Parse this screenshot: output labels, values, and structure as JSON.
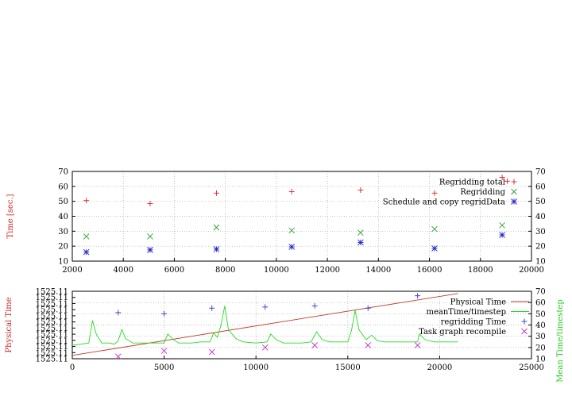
{
  "chart_data": [
    {
      "type": "scatter",
      "ylabel": "Time [sec.]",
      "xlim": [
        2000,
        20000
      ],
      "ylim": [
        10,
        70
      ],
      "xticks": [
        2000,
        4000,
        6000,
        8000,
        10000,
        12000,
        14000,
        16000,
        18000,
        20000
      ],
      "yticks": [
        10,
        20,
        30,
        40,
        50,
        60,
        70
      ],
      "y2ticks": [
        10,
        20,
        30,
        40,
        50,
        60,
        70
      ],
      "grid": true,
      "legend_position": "top-right",
      "series": [
        {
          "name": "Regridding total",
          "marker": "plus",
          "color": "#d62728",
          "points": [
            [
              2550,
              50.5
            ],
            [
              5050,
              48.5
            ],
            [
              7650,
              55.5
            ],
            [
              10600,
              56.5
            ],
            [
              13300,
              57.5
            ],
            [
              16200,
              55.5
            ],
            [
              18850,
              66
            ],
            [
              19050,
              63.5
            ]
          ]
        },
        {
          "name": "Regridding",
          "marker": "cross",
          "color": "#2ca02c",
          "points": [
            [
              2550,
              26.5
            ],
            [
              5050,
              26.5
            ],
            [
              7650,
              32.5
            ],
            [
              10600,
              30.5
            ],
            [
              13300,
              29
            ],
            [
              16200,
              31.5
            ],
            [
              18850,
              34
            ]
          ]
        },
        {
          "name": "Schedule and copy regridData",
          "marker": "star",
          "color": "#1f1fcf",
          "points": [
            [
              2550,
              16
            ],
            [
              5050,
              17.5
            ],
            [
              7650,
              18
            ],
            [
              10600,
              19.5
            ],
            [
              13300,
              22.5
            ],
            [
              16200,
              18.5
            ],
            [
              18850,
              27.5
            ]
          ]
        }
      ]
    },
    {
      "type": "line",
      "ylabel": "Physical Time",
      "y2label": "Mean Time/timestep",
      "xlim": [
        0,
        25000
      ],
      "y2lim": [
        10,
        70
      ],
      "xticks": [
        0,
        5000,
        10000,
        15000,
        20000,
        25000
      ],
      "yticks": [
        "1525.11",
        "1525.11",
        "1525.11",
        "1525.11",
        "1525.11",
        "1525.11",
        "1525.11",
        "1525.11",
        "1525.11",
        "1525.11",
        "1525.11",
        "1525.11"
      ],
      "y2ticks": [
        10,
        20,
        30,
        40,
        50,
        60,
        70
      ],
      "grid": true,
      "legend_position": "top-right",
      "series": [
        {
          "name": "Physical Time",
          "color": "#c0392b",
          "axis": "y2",
          "points": [
            [
              0,
              13
            ],
            [
              21000,
              68
            ]
          ]
        },
        {
          "name": "meanTime/timestep",
          "color": "#22dd22",
          "axis": "y2",
          "points": [
            [
              0,
              22
            ],
            [
              500,
              23
            ],
            [
              900,
              24
            ],
            [
              1100,
              44
            ],
            [
              1300,
              32
            ],
            [
              1600,
              24
            ],
            [
              2000,
              24
            ],
            [
              2300,
              23
            ],
            [
              2500,
              26
            ],
            [
              2700,
              36
            ],
            [
              2900,
              28
            ],
            [
              3300,
              24
            ],
            [
              4000,
              24
            ],
            [
              4500,
              24
            ],
            [
              5000,
              24
            ],
            [
              5200,
              32
            ],
            [
              5500,
              27
            ],
            [
              5800,
              24
            ],
            [
              6500,
              24
            ],
            [
              7000,
              25
            ],
            [
              7500,
              25
            ],
            [
              7700,
              33
            ],
            [
              7900,
              29
            ],
            [
              8100,
              40
            ],
            [
              8300,
              57
            ],
            [
              8500,
              36
            ],
            [
              8900,
              28
            ],
            [
              9300,
              25
            ],
            [
              10000,
              24
            ],
            [
              10600,
              25
            ],
            [
              10800,
              32
            ],
            [
              11100,
              27
            ],
            [
              11500,
              24
            ],
            [
              12000,
              24
            ],
            [
              12500,
              24
            ],
            [
              13000,
              25
            ],
            [
              13300,
              34
            ],
            [
              13600,
              27
            ],
            [
              14000,
              25
            ],
            [
              14600,
              25
            ],
            [
              15000,
              25
            ],
            [
              15200,
              35
            ],
            [
              15400,
              53
            ],
            [
              15600,
              36
            ],
            [
              16000,
              27
            ],
            [
              16300,
              31
            ],
            [
              16600,
              26
            ],
            [
              17000,
              25
            ],
            [
              18000,
              25
            ],
            [
              18800,
              25
            ],
            [
              18900,
              32
            ],
            [
              19200,
              27
            ],
            [
              19700,
              25
            ],
            [
              20500,
              25
            ],
            [
              21000,
              25
            ]
          ]
        },
        {
          "name": "regridding Time",
          "marker": "plus",
          "color": "#3333cc",
          "axis": "y2",
          "points": [
            [
              2500,
              51
            ],
            [
              5000,
              50
            ],
            [
              7600,
              55
            ],
            [
              10500,
              56
            ],
            [
              13200,
              57
            ],
            [
              16100,
              55
            ],
            [
              18800,
              66
            ]
          ]
        },
        {
          "name": "Task graph recompile",
          "marker": "cross",
          "color": "#cc33cc",
          "axis": "y2",
          "points": [
            [
              2500,
              12
            ],
            [
              5000,
              17
            ],
            [
              7600,
              16
            ],
            [
              10500,
              20
            ],
            [
              13200,
              22
            ],
            [
              16100,
              22
            ],
            [
              18800,
              22
            ]
          ]
        }
      ]
    }
  ]
}
